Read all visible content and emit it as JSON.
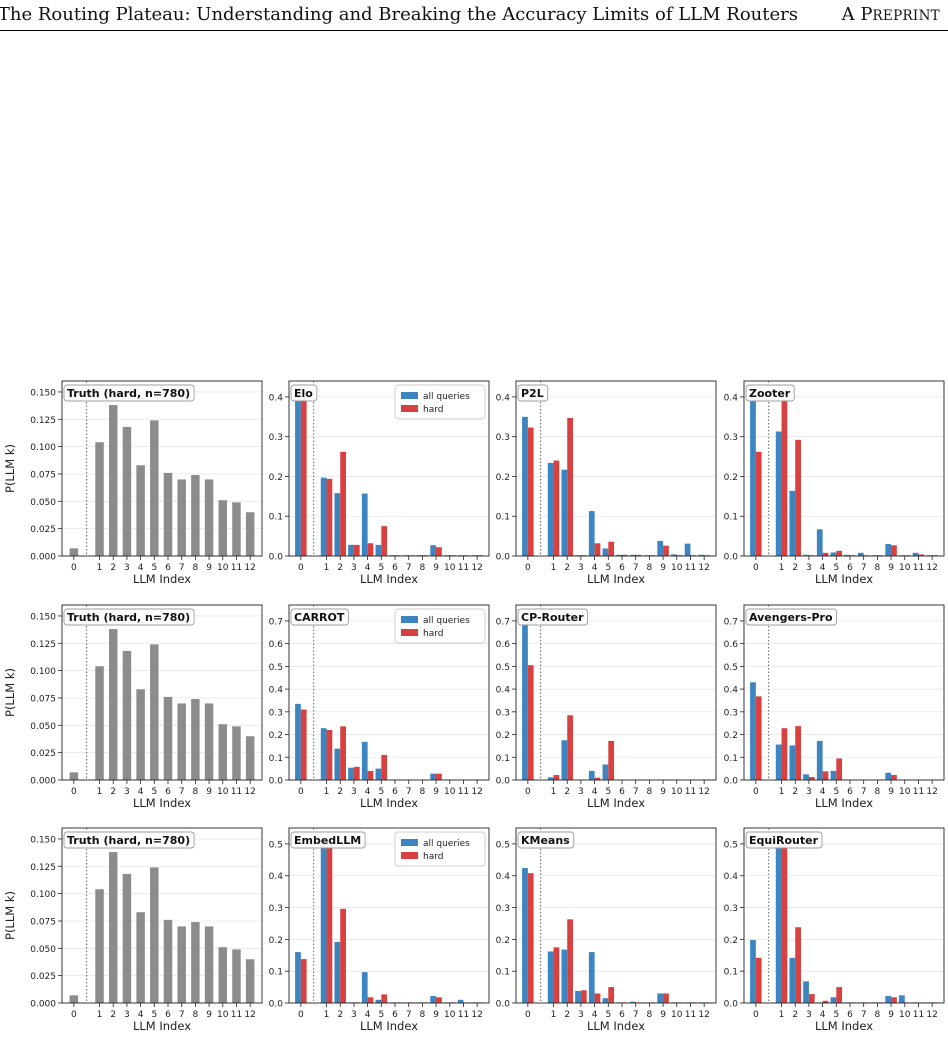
{
  "header": {
    "title": "The Routing Plateau: Understanding and Breaking the Accuracy Limits of LLM Routers",
    "tag_a": "A P",
    "tag_rest": "REPRINT"
  },
  "colors": {
    "all": "#3d85c0",
    "hard": "#d94040",
    "truth": "#8c8c8c"
  },
  "chart_data": [
    {
      "type": "bar",
      "panel": "truth",
      "title": "Truth (hard, n=780)",
      "xlabel": "LLM Index",
      "ylabel": "P(LLM k)",
      "ylim": [
        0,
        0.16
      ],
      "yticks": [
        0,
        0.025,
        0.05,
        0.075,
        0.1,
        0.125,
        0.15
      ],
      "grid": true,
      "categories": [
        0,
        1,
        2,
        3,
        4,
        5,
        6,
        7,
        8,
        9,
        10,
        11,
        12
      ],
      "series": [
        {
          "values": [
            0.007,
            0.104,
            0.138,
            0.118,
            0.083,
            0.124,
            0.076,
            0.07,
            0.074,
            0.07,
            0.051,
            0.049,
            0.04
          ]
        }
      ]
    },
    {
      "type": "bar",
      "panel": "elo",
      "title": "Elo",
      "xlabel": "LLM Index",
      "ylim": [
        0,
        0.44
      ],
      "yticks": [
        0,
        0.1,
        0.2,
        0.3,
        0.4
      ],
      "grid": true,
      "legend": "top-right",
      "categories": [
        0,
        1,
        2,
        3,
        4,
        5,
        6,
        7,
        8,
        9,
        10,
        11,
        12
      ],
      "series": [
        {
          "name": "all queries",
          "values": [
            0.4,
            0.197,
            0.158,
            0.028,
            0.157,
            0.028,
            0.002,
            0.002,
            0.002,
            0.027,
            0.002,
            0.002,
            0.002
          ]
        },
        {
          "name": "hard",
          "values": [
            0.4,
            0.194,
            0.262,
            0.028,
            0.032,
            0.075,
            0.002,
            0.002,
            0.002,
            0.022,
            0.002,
            0.002,
            0.002
          ]
        }
      ]
    },
    {
      "type": "bar",
      "panel": "p2l",
      "title": "P2L",
      "xlabel": "LLM Index",
      "ylim": [
        0,
        0.44
      ],
      "yticks": [
        0,
        0.1,
        0.2,
        0.3,
        0.4
      ],
      "grid": true,
      "categories": [
        0,
        1,
        2,
        3,
        4,
        5,
        6,
        7,
        8,
        9,
        10,
        11,
        12
      ],
      "series": [
        {
          "name": "all queries",
          "values": [
            0.35,
            0.234,
            0.217,
            0.002,
            0.113,
            0.019,
            0.003,
            0.003,
            0.002,
            0.038,
            0.004,
            0.031,
            0.003
          ]
        },
        {
          "name": "hard",
          "values": [
            0.323,
            0.24,
            0.347,
            0.002,
            0.032,
            0.036,
            0.003,
            0.003,
            0.002,
            0.026,
            0.002,
            0.002,
            0.002
          ]
        }
      ]
    },
    {
      "type": "bar",
      "panel": "zooter",
      "title": "Zooter",
      "xlabel": "LLM Index",
      "ylim": [
        0,
        0.44
      ],
      "yticks": [
        0,
        0.1,
        0.2,
        0.3,
        0.4
      ],
      "grid": true,
      "categories": [
        0,
        1,
        2,
        3,
        4,
        5,
        6,
        7,
        8,
        9,
        10,
        11,
        12
      ],
      "series": [
        {
          "name": "all queries",
          "values": [
            0.4,
            0.313,
            0.164,
            0.003,
            0.067,
            0.009,
            0.003,
            0.008,
            0.002,
            0.03,
            0.002,
            0.008,
            0.002
          ]
        },
        {
          "name": "hard",
          "values": [
            0.262,
            0.4,
            0.292,
            0.002,
            0.008,
            0.013,
            0.002,
            0.002,
            0.002,
            0.027,
            0.002,
            0.004,
            0.002
          ]
        }
      ]
    },
    {
      "type": "bar",
      "panel": "truth",
      "title": "Truth (hard, n=780)",
      "xlabel": "LLM Index",
      "ylabel": "P(LLM k)",
      "ylim": [
        0,
        0.16
      ],
      "yticks": [
        0,
        0.025,
        0.05,
        0.075,
        0.1,
        0.125,
        0.15
      ],
      "grid": true,
      "categories": [
        0,
        1,
        2,
        3,
        4,
        5,
        6,
        7,
        8,
        9,
        10,
        11,
        12
      ],
      "series": [
        {
          "values": [
            0.007,
            0.104,
            0.138,
            0.118,
            0.083,
            0.124,
            0.076,
            0.07,
            0.074,
            0.07,
            0.051,
            0.049,
            0.04
          ]
        }
      ]
    },
    {
      "type": "bar",
      "panel": "carrot",
      "title": "CARROT",
      "xlabel": "LLM Index",
      "ylim": [
        0,
        0.77
      ],
      "yticks": [
        0,
        0.1,
        0.2,
        0.3,
        0.4,
        0.5,
        0.6,
        0.7
      ],
      "grid": true,
      "legend": "top-right",
      "categories": [
        0,
        1,
        2,
        3,
        4,
        5,
        6,
        7,
        8,
        9,
        10,
        11,
        12
      ],
      "series": [
        {
          "name": "all queries",
          "values": [
            0.335,
            0.228,
            0.138,
            0.054,
            0.168,
            0.05,
            0.002,
            0.002,
            0.002,
            0.028,
            0.002,
            0.002,
            0.002
          ]
        },
        {
          "name": "hard",
          "values": [
            0.31,
            0.22,
            0.236,
            0.058,
            0.04,
            0.11,
            0.002,
            0.002,
            0.002,
            0.028,
            0.002,
            0.002,
            0.002
          ]
        }
      ]
    },
    {
      "type": "bar",
      "panel": "cp-router",
      "title": "CP-Router",
      "xlabel": "LLM Index",
      "ylim": [
        0,
        0.77
      ],
      "yticks": [
        0,
        0.1,
        0.2,
        0.3,
        0.4,
        0.5,
        0.6,
        0.7
      ],
      "grid": true,
      "categories": [
        0,
        1,
        2,
        3,
        4,
        5,
        6,
        7,
        8,
        9,
        10,
        11,
        12
      ],
      "series": [
        {
          "name": "all queries",
          "values": [
            0.7,
            0.012,
            0.175,
            0.002,
            0.04,
            0.068,
            0.002,
            0.002,
            0.002,
            0.002,
            0.002,
            0.002,
            0.002
          ]
        },
        {
          "name": "hard",
          "values": [
            0.505,
            0.022,
            0.285,
            0.002,
            0.01,
            0.172,
            0.002,
            0.002,
            0.002,
            0.002,
            0.002,
            0.002,
            0.002
          ]
        }
      ]
    },
    {
      "type": "bar",
      "panel": "avengers-pro",
      "title": "Avengers-Pro",
      "xlabel": "LLM Index",
      "ylim": [
        0,
        0.77
      ],
      "yticks": [
        0,
        0.1,
        0.2,
        0.3,
        0.4,
        0.5,
        0.6,
        0.7
      ],
      "grid": true,
      "categories": [
        0,
        1,
        2,
        3,
        4,
        5,
        6,
        7,
        8,
        9,
        10,
        11,
        12
      ],
      "series": [
        {
          "name": "all queries",
          "values": [
            0.43,
            0.156,
            0.152,
            0.025,
            0.172,
            0.04,
            0.002,
            0.002,
            0.002,
            0.032,
            0.002,
            0.002,
            0.002
          ]
        },
        {
          "name": "hard",
          "values": [
            0.368,
            0.228,
            0.237,
            0.013,
            0.038,
            0.095,
            0.002,
            0.002,
            0.002,
            0.022,
            0.002,
            0.002,
            0.002
          ]
        }
      ]
    },
    {
      "type": "bar",
      "panel": "truth",
      "title": "Truth (hard, n=780)",
      "xlabel": "LLM Index",
      "ylabel": "P(LLM k)",
      "ylim": [
        0,
        0.16
      ],
      "yticks": [
        0,
        0.025,
        0.05,
        0.075,
        0.1,
        0.125,
        0.15
      ],
      "grid": true,
      "categories": [
        0,
        1,
        2,
        3,
        4,
        5,
        6,
        7,
        8,
        9,
        10,
        11,
        12
      ],
      "series": [
        {
          "values": [
            0.007,
            0.104,
            0.138,
            0.118,
            0.083,
            0.124,
            0.076,
            0.07,
            0.074,
            0.07,
            0.051,
            0.049,
            0.04
          ]
        }
      ]
    },
    {
      "type": "bar",
      "panel": "embedllm",
      "title": "EmbedLLM",
      "xlabel": "LLM Index",
      "ylim": [
        0,
        0.55
      ],
      "yticks": [
        0,
        0.1,
        0.2,
        0.3,
        0.4,
        0.5
      ],
      "grid": true,
      "legend": "top-right",
      "categories": [
        0,
        1,
        2,
        3,
        4,
        5,
        6,
        7,
        8,
        9,
        10,
        11,
        12
      ],
      "series": [
        {
          "name": "all queries",
          "values": [
            0.16,
            0.5,
            0.192,
            0.002,
            0.097,
            0.01,
            0.002,
            0.002,
            0.002,
            0.022,
            0.002,
            0.01,
            0.002
          ]
        },
        {
          "name": "hard",
          "values": [
            0.138,
            0.5,
            0.296,
            0.002,
            0.018,
            0.027,
            0.002,
            0.002,
            0.002,
            0.018,
            0.002,
            0.002,
            0.002
          ]
        }
      ]
    },
    {
      "type": "bar",
      "panel": "kmeans",
      "title": "KMeans",
      "xlabel": "LLM Index",
      "ylim": [
        0,
        0.55
      ],
      "yticks": [
        0,
        0.1,
        0.2,
        0.3,
        0.4,
        0.5
      ],
      "grid": true,
      "categories": [
        0,
        1,
        2,
        3,
        4,
        5,
        6,
        7,
        8,
        9,
        10,
        11,
        12
      ],
      "series": [
        {
          "name": "all queries",
          "values": [
            0.424,
            0.162,
            0.168,
            0.038,
            0.16,
            0.015,
            0.002,
            0.004,
            0.002,
            0.03,
            0.002,
            0.002,
            0.002
          ]
        },
        {
          "name": "hard",
          "values": [
            0.408,
            0.175,
            0.263,
            0.04,
            0.03,
            0.05,
            0.002,
            0.002,
            0.002,
            0.03,
            0.002,
            0.002,
            0.002
          ]
        }
      ]
    },
    {
      "type": "bar",
      "panel": "equirouter",
      "title": "EquiRouter",
      "xlabel": "LLM Index",
      "ylim": [
        0,
        0.55
      ],
      "yticks": [
        0,
        0.1,
        0.2,
        0.3,
        0.4,
        0.5
      ],
      "grid": true,
      "categories": [
        0,
        1,
        2,
        3,
        4,
        5,
        6,
        7,
        8,
        9,
        10,
        11,
        12
      ],
      "series": [
        {
          "name": "all queries",
          "values": [
            0.198,
            0.5,
            0.142,
            0.068,
            0.002,
            0.018,
            0.002,
            0.002,
            0.002,
            0.022,
            0.024,
            0.002,
            0.002
          ]
        },
        {
          "name": "hard",
          "values": [
            0.142,
            0.5,
            0.238,
            0.028,
            0.007,
            0.05,
            0.002,
            0.002,
            0.002,
            0.018,
            0.002,
            0.002,
            0.002
          ]
        }
      ]
    }
  ]
}
